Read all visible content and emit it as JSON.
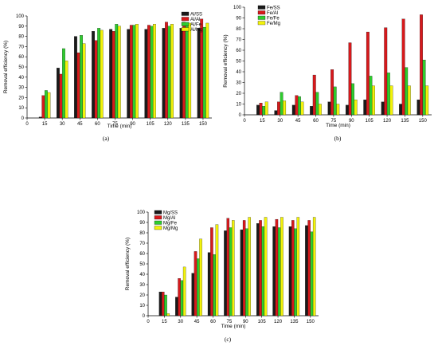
{
  "colors": {
    "SS": "#1a1a1a",
    "Al": "#d7191c",
    "Fe": "#2ecc2e",
    "Mg": "#f2f20a"
  },
  "chart_data": [
    {
      "type": "bar",
      "caption": "(a)",
      "xlabel": "Time (min)",
      "ylabel": "Removal efficiency (%)",
      "ylim": [
        0,
        100
      ],
      "yticks": [
        0,
        10,
        20,
        30,
        40,
        50,
        60,
        70,
        80,
        90,
        100
      ],
      "xticks": [
        "0",
        "15",
        "30",
        "45",
        "60",
        "75",
        "90",
        "105",
        "120",
        "135",
        "150"
      ],
      "categories": [
        "15",
        "30",
        "45",
        "60",
        "75",
        "90",
        "105",
        "120",
        "135",
        "150"
      ],
      "legend_position": "top-right",
      "series": [
        {
          "name": "Al/SS",
          "key": "SS",
          "values": [
            1,
            49,
            80,
            85,
            87,
            87,
            87,
            88,
            88,
            88
          ]
        },
        {
          "name": "Al/Al",
          "key": "Al",
          "values": [
            22,
            43,
            64,
            76,
            85,
            91,
            91,
            94,
            94,
            97
          ]
        },
        {
          "name": "Al/Fe",
          "key": "Fe",
          "values": [
            27,
            68,
            81,
            88,
            92,
            91,
            90,
            90,
            90,
            89
          ]
        },
        {
          "name": "Al/Mg",
          "key": "Mg",
          "values": [
            25,
            56,
            73,
            86,
            90,
            92,
            92,
            92,
            93,
            93
          ]
        }
      ]
    },
    {
      "type": "bar",
      "caption": "(b)",
      "xlabel": "Time (min)",
      "ylabel": "Removal efficiency (%)",
      "ylim": [
        0,
        100
      ],
      "yticks": [
        0,
        10,
        20,
        30,
        40,
        50,
        60,
        70,
        80,
        90,
        100
      ],
      "xticks": [
        "0",
        "15",
        "30",
        "45",
        "60",
        "75",
        "90",
        "105",
        "120",
        "135",
        "150"
      ],
      "categories": [
        "15",
        "30",
        "45",
        "60",
        "75",
        "90",
        "105",
        "120",
        "135",
        "150"
      ],
      "legend_position": "top-left",
      "series": [
        {
          "name": "Fe/SS",
          "key": "SS",
          "values": [
            9,
            4,
            9,
            8,
            12,
            9,
            14,
            12,
            10,
            14
          ]
        },
        {
          "name": "Fe/Al",
          "key": "Al",
          "values": [
            11,
            12,
            18,
            37,
            42,
            67,
            77,
            81,
            89,
            93
          ]
        },
        {
          "name": "Fe/Fe",
          "key": "Fe",
          "values": [
            8,
            21,
            17,
            21,
            26,
            29,
            36,
            39,
            44,
            51
          ]
        },
        {
          "name": "Fe/Mg",
          "key": "Mg",
          "values": [
            12,
            13,
            12,
            10,
            10,
            14,
            27,
            27,
            27,
            27
          ]
        }
      ]
    },
    {
      "type": "bar",
      "caption": "(c)",
      "xlabel": "Time (min)",
      "ylabel": "Removal efficiency (%)",
      "ylim": [
        0,
        100
      ],
      "yticks": [
        0,
        10,
        20,
        30,
        40,
        50,
        60,
        70,
        80,
        90,
        100
      ],
      "xticks": [
        "0",
        "15",
        "30",
        "45",
        "60",
        "75",
        "90",
        "105",
        "120",
        "135",
        "150"
      ],
      "categories": [
        "15",
        "30",
        "45",
        "60",
        "75",
        "90",
        "105",
        "120",
        "135",
        "150"
      ],
      "legend_position": "top-left",
      "series": [
        {
          "name": "Mg/SS",
          "key": "SS",
          "values": [
            23,
            18,
            41,
            61,
            82,
            83,
            89,
            86,
            86,
            87
          ]
        },
        {
          "name": "Mg/Al",
          "key": "Al",
          "values": [
            23,
            36,
            62,
            85,
            94,
            92,
            92,
            93,
            92,
            92
          ]
        },
        {
          "name": "Mg/Fe",
          "key": "Fe",
          "values": [
            20,
            34,
            55,
            59,
            85,
            84,
            86,
            85,
            84,
            81
          ]
        },
        {
          "name": "Mg/Mg",
          "key": "Mg",
          "values": [
            2,
            47,
            74,
            88,
            92,
            95,
            95,
            95,
            95,
            95
          ]
        }
      ]
    }
  ]
}
